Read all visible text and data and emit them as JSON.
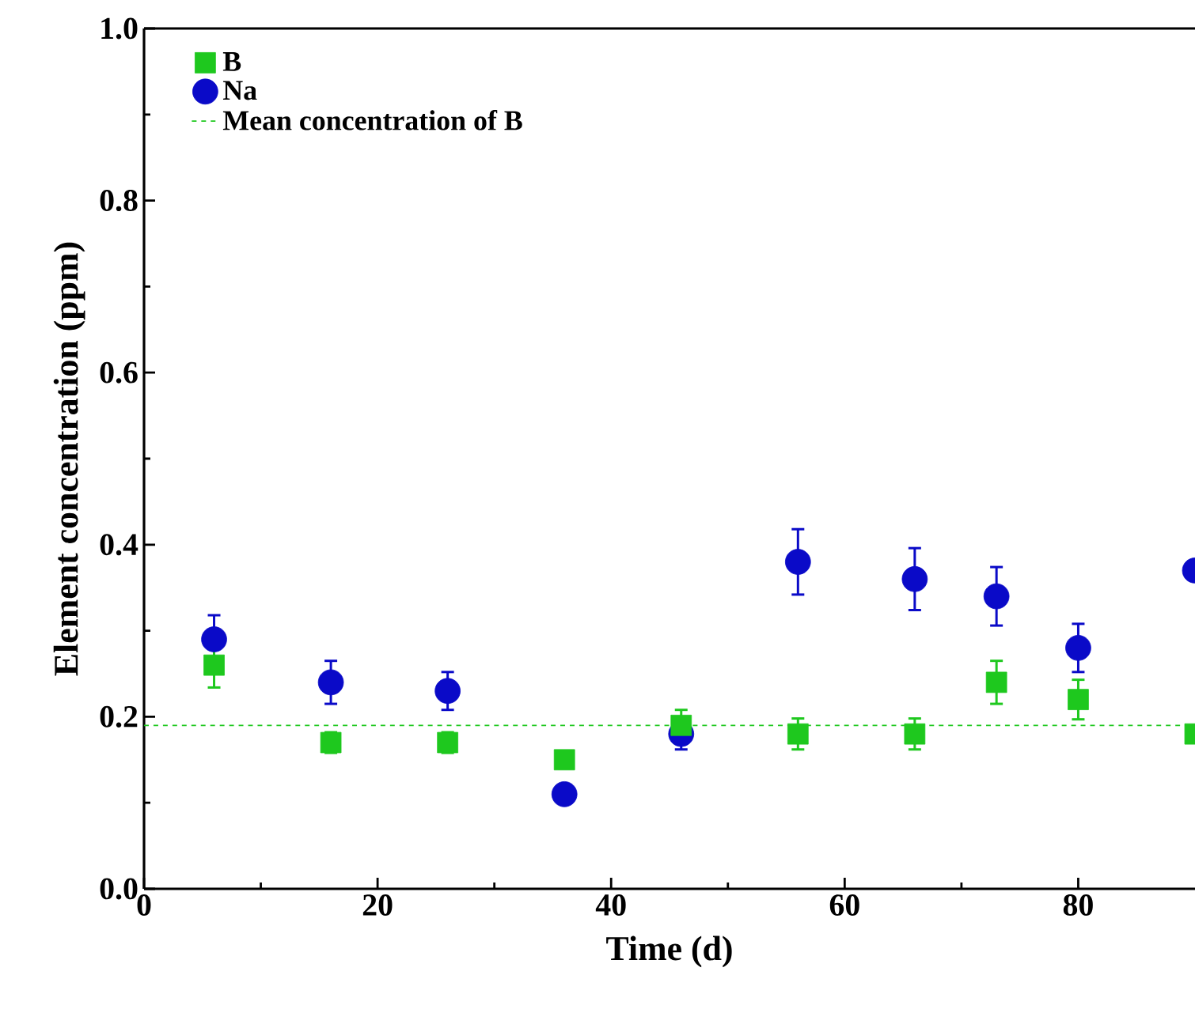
{
  "chart_data": {
    "type": "scatter",
    "xlabel": "Time (d)",
    "ylabel": "Element concentration (ppm)",
    "x": [
      6,
      16,
      26,
      36,
      46,
      56,
      66,
      73,
      80,
      90
    ],
    "series": [
      {
        "name": "B",
        "color": "#1ec81e",
        "marker": "square",
        "values": [
          0.26,
          0.17,
          0.17,
          0.15,
          0.19,
          0.18,
          0.18,
          0.24,
          0.22,
          0.18
        ],
        "errors": [
          0.026,
          0.012,
          0.012,
          0.01,
          0.018,
          0.018,
          0.018,
          0.025,
          0.023,
          null
        ]
      },
      {
        "name": "Na",
        "color": "#0a0ac8",
        "marker": "circle",
        "values": [
          0.29,
          0.24,
          0.23,
          0.11,
          0.18,
          0.38,
          0.36,
          0.34,
          0.28,
          0.37
        ],
        "errors": [
          0.028,
          0.025,
          0.022,
          null,
          0.018,
          0.038,
          0.036,
          0.034,
          0.028,
          null
        ]
      }
    ],
    "ref_lines": [
      {
        "axis": "y",
        "value": 0.19,
        "label": "Mean concentration of B",
        "color": "#1ec81e",
        "line_style": "dashed"
      }
    ],
    "xlim": [
      0,
      90
    ],
    "ylim": [
      0,
      1.0
    ],
    "xticks": [
      0,
      20,
      40,
      60,
      80
    ],
    "yticks": [
      {
        "value": 0,
        "label": "0.0"
      },
      {
        "value": 0.2,
        "label": "0.2"
      },
      {
        "value": 0.4,
        "label": "0.4"
      },
      {
        "value": 0.6,
        "label": "0.6"
      },
      {
        "value": 0.8,
        "label": "0.8"
      },
      {
        "value": 1.0,
        "label": "1.0"
      }
    ],
    "legend": "top left",
    "grid": false
  }
}
